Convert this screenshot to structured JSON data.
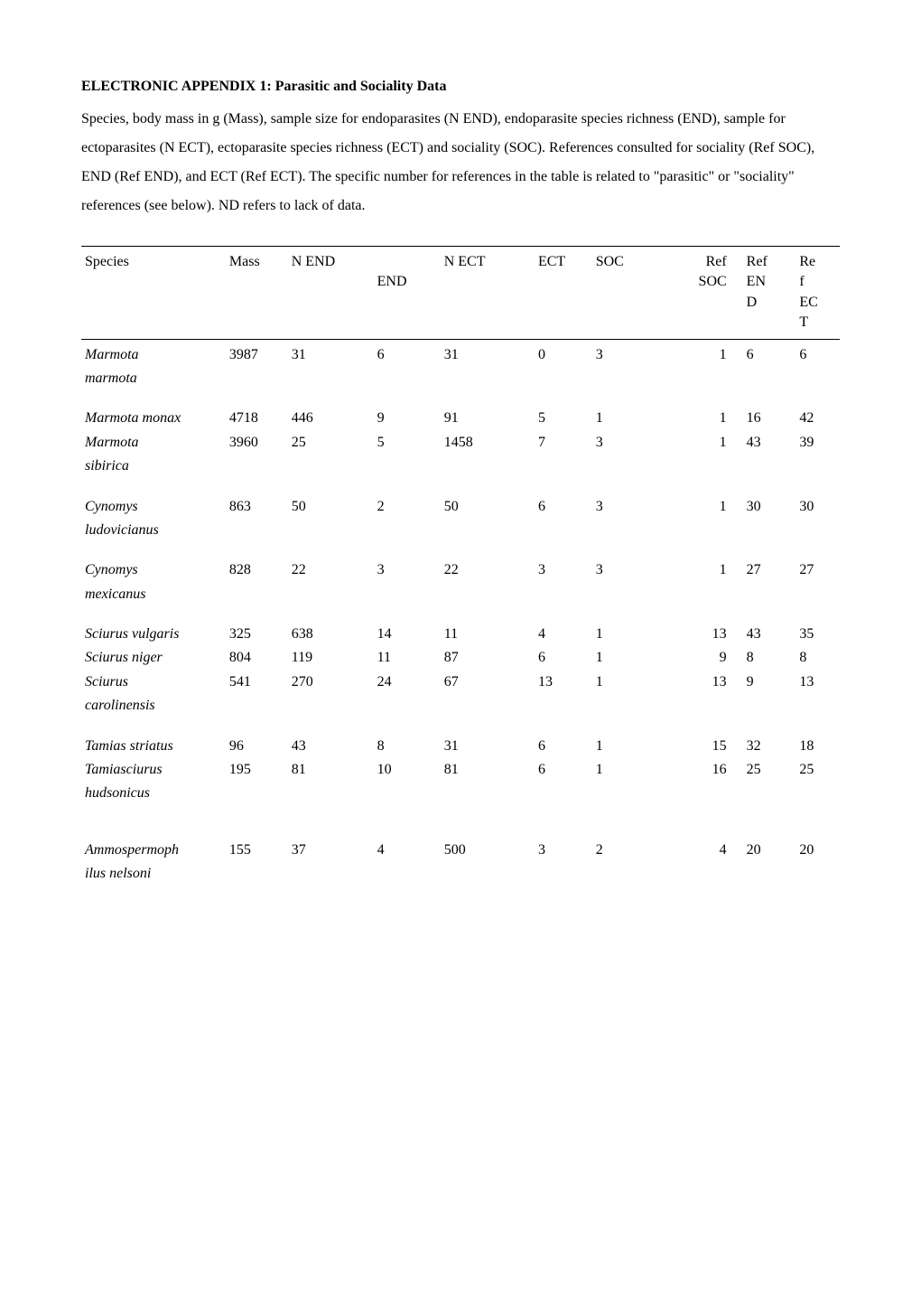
{
  "title": "ELECTRONIC APPENDIX 1: Parasitic and Sociality Data",
  "intro": "Species, body mass in g (Mass), sample size for endoparasites (N END), endoparasite species richness (END), sample for ectoparasites (N ECT), ectoparasite species richness (ECT) and sociality (SOC).  References consulted for sociality (Ref SOC), END (Ref END), and ECT (Ref ECT).  The specific number for references in the table is related to \"parasitic\" or \"sociality\" references (see below). ND refers to lack of data.",
  "columns": {
    "species": "Species",
    "mass": "Mass",
    "nend": "N END",
    "end_line1": "",
    "end_line2": "END",
    "nect": "N ECT",
    "ect": "ECT",
    "soc": "SOC",
    "ref_line1": "Ref",
    "refsoc_line2": "SOC",
    "refend_line2": "EN",
    "refend_line3": "D",
    "refect_line1": "Re",
    "refect_line2": "f",
    "refect_line3": "EC",
    "refect_line4": "T"
  },
  "rows": [
    {
      "type": "data",
      "species_top": "Marmota",
      "species_bottom": "marmota",
      "mass": "3987",
      "nend": "31",
      "end": "6",
      "nect": "31",
      "ect": "0",
      "soc": "3",
      "refsoc": "1",
      "refend": "6",
      "refect": "6"
    },
    {
      "type": "data",
      "species_top": "Marmota monax",
      "species_bottom": "",
      "mass": "4718",
      "nend": "446",
      "end": "9",
      "nect": "91",
      "ect": "5",
      "soc": "1",
      "refsoc": "1",
      "refend": "16",
      "refect": "42"
    },
    {
      "type": "data",
      "species_top": "Marmota",
      "species_bottom": "sibirica",
      "mass": "3960",
      "nend": "25",
      "end": "5",
      "nect": "1458",
      "ect": "7",
      "soc": "3",
      "refsoc": "1",
      "refend": "43",
      "refect": "39"
    },
    {
      "type": "data",
      "species_top": "Cynomys",
      "species_bottom": "ludovicianus",
      "mass": "863",
      "nend": "50",
      "end": "2",
      "nect": "50",
      "ect": "6",
      "soc": "3",
      "refsoc": "1",
      "refend": "30",
      "refect": "30"
    },
    {
      "type": "data",
      "species_top": "Cynomys",
      "species_bottom": "mexicanus",
      "mass": "828",
      "nend": "22",
      "end": "3",
      "nect": "22",
      "ect": "3",
      "soc": "3",
      "refsoc": "1",
      "refend": "27",
      "refect": "27"
    },
    {
      "type": "data",
      "species_top": "Sciurus vulgaris",
      "species_bottom": "",
      "mass": "325",
      "nend": "638",
      "end": "14",
      "nect": "11",
      "ect": "4",
      "soc": "1",
      "refsoc": "13",
      "refend": "43",
      "refect": "35"
    },
    {
      "type": "data",
      "species_top": "Sciurus niger",
      "species_bottom": "",
      "mass": "804",
      "nend": "119",
      "end": "11",
      "nect": "87",
      "ect": "6",
      "soc": "1",
      "refsoc": "9",
      "refend": "8",
      "refect": "8"
    },
    {
      "type": "data",
      "species_top": "Sciurus",
      "species_bottom": "carolinensis",
      "mass": "541",
      "nend": "270",
      "end": "24",
      "nect": "67",
      "ect": "13",
      "soc": "1",
      "refsoc": "13",
      "refend": "9",
      "refect": "13"
    },
    {
      "type": "data",
      "species_top": "Tamias striatus",
      "species_bottom": "",
      "mass": "96",
      "nend": "43",
      "end": "8",
      "nect": "31",
      "ect": "6",
      "soc": "1",
      "refsoc": "15",
      "refend": "32",
      "refect": "18"
    },
    {
      "type": "data",
      "species_top": "Tamiasciurus",
      "species_bottom": "hudsonicus",
      "mass": "195",
      "nend": "81",
      "end": "10",
      "nect": " 81",
      "ect": "6",
      "soc": "1",
      "refsoc": "16",
      "refend": "25",
      "refect": "25"
    },
    {
      "type": "gap"
    },
    {
      "type": "data",
      "species_top": "Ammospermoph",
      "species_bottom": "ilus nelsoni",
      "mass": "155",
      "nend": "37",
      "end": "4",
      "nect": "500",
      "ect": "3",
      "soc": "2",
      "refsoc": "4",
      "refend": "20",
      "refect": "20"
    }
  ],
  "style": {
    "font_family": "Times New Roman",
    "body_font_size_pt": 12,
    "line_height": 2.0,
    "border_color": "#000000",
    "text_color": "#000000",
    "background_color": "#ffffff"
  }
}
